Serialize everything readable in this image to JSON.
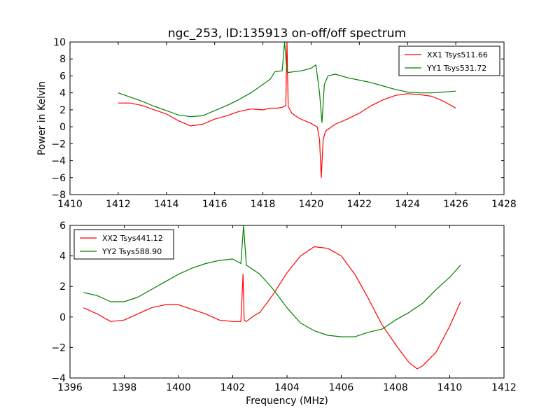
{
  "title": "ngc_253, ID:135913 on-off/off spectrum",
  "chart_data": [
    {
      "type": "line",
      "title": "ngc_253, ID:135913 on-off/off spectrum",
      "xlabel": "",
      "ylabel": "Power in Kelvin",
      "xlim": [
        1410,
        1428
      ],
      "ylim": [
        -8,
        10
      ],
      "xticks": [
        1410,
        1412,
        1414,
        1416,
        1418,
        1420,
        1422,
        1424,
        1426,
        1428
      ],
      "yticks": [
        -8,
        -6,
        -4,
        -2,
        0,
        2,
        4,
        6,
        8,
        10
      ],
      "legend_position": "top-right",
      "series": [
        {
          "name": "XX1 Tsys511.66",
          "color": "#ff0000",
          "x": [
            1412.0,
            1412.5,
            1413.0,
            1413.5,
            1414.0,
            1414.5,
            1415.0,
            1415.5,
            1416.0,
            1416.5,
            1417.0,
            1417.5,
            1418.0,
            1418.3,
            1418.6,
            1418.8,
            1418.95,
            1419.0,
            1419.05,
            1419.2,
            1419.5,
            1420.0,
            1420.25,
            1420.35,
            1420.42,
            1420.5,
            1420.6,
            1421.0,
            1421.5,
            1422.0,
            1422.5,
            1423.0,
            1423.5,
            1424.0,
            1424.5,
            1425.0,
            1425.5,
            1426.0
          ],
          "y": [
            2.8,
            2.8,
            2.5,
            2.0,
            1.5,
            0.7,
            0.1,
            0.3,
            0.9,
            1.3,
            1.8,
            2.1,
            2.0,
            2.2,
            2.2,
            2.3,
            2.5,
            10.0,
            2.4,
            1.6,
            1.0,
            0.4,
            0.0,
            -1.5,
            -6.0,
            -1.5,
            -0.5,
            0.3,
            0.9,
            1.6,
            2.5,
            3.2,
            3.7,
            3.9,
            3.8,
            3.6,
            3.0,
            2.2
          ]
        },
        {
          "name": "YY1 Tsys531.72",
          "color": "#008000",
          "x": [
            1412.0,
            1412.5,
            1413.0,
            1413.5,
            1414.0,
            1414.5,
            1415.0,
            1415.5,
            1416.0,
            1416.5,
            1417.0,
            1417.5,
            1418.0,
            1418.3,
            1418.5,
            1418.8,
            1418.9,
            1419.0,
            1419.05,
            1419.3,
            1419.6,
            1420.0,
            1420.2,
            1420.35,
            1420.45,
            1420.55,
            1420.7,
            1421.0,
            1421.5,
            1422.0,
            1422.5,
            1423.0,
            1423.5,
            1424.0,
            1424.5,
            1425.0,
            1425.5,
            1426.0
          ],
          "y": [
            4.0,
            3.5,
            3.0,
            2.4,
            1.9,
            1.4,
            1.2,
            1.3,
            1.9,
            2.5,
            3.2,
            4.0,
            5.0,
            5.6,
            6.5,
            6.6,
            10.0,
            6.5,
            6.4,
            6.5,
            6.6,
            6.9,
            7.3,
            4.0,
            0.5,
            5.0,
            6.0,
            6.2,
            5.8,
            5.5,
            5.2,
            4.8,
            4.4,
            4.1,
            4.0,
            4.0,
            4.1,
            4.2
          ]
        }
      ]
    },
    {
      "type": "line",
      "title": "",
      "xlabel": "Frequency (MHz)",
      "ylabel": "",
      "xlim": [
        1396,
        1412
      ],
      "ylim": [
        -4,
        6
      ],
      "xticks": [
        1396,
        1398,
        1400,
        1402,
        1404,
        1406,
        1408,
        1410,
        1412
      ],
      "yticks": [
        -4,
        -2,
        0,
        2,
        4,
        6
      ],
      "legend_position": "top-left",
      "series": [
        {
          "name": "XX2 Tsys441.12",
          "color": "#ff0000",
          "x": [
            1396.5,
            1397.0,
            1397.5,
            1398.0,
            1398.5,
            1399.0,
            1399.5,
            1400.0,
            1400.5,
            1401.0,
            1401.5,
            1402.0,
            1402.3,
            1402.38,
            1402.42,
            1402.5,
            1402.8,
            1403.0,
            1403.5,
            1404.0,
            1404.5,
            1405.0,
            1405.5,
            1406.0,
            1406.5,
            1407.0,
            1407.5,
            1408.0,
            1408.5,
            1408.8,
            1409.0,
            1409.5,
            1410.0,
            1410.4
          ],
          "y": [
            0.6,
            0.2,
            -0.3,
            -0.2,
            0.2,
            0.6,
            0.8,
            0.8,
            0.5,
            0.2,
            -0.2,
            -0.3,
            -0.3,
            2.8,
            -0.2,
            -0.3,
            0.1,
            0.3,
            1.5,
            2.9,
            4.0,
            4.6,
            4.5,
            4.0,
            2.8,
            1.2,
            -0.5,
            -1.8,
            -3.0,
            -3.4,
            -3.2,
            -2.3,
            -0.6,
            1.0
          ]
        },
        {
          "name": "YY2 Tsys588.90",
          "color": "#008000",
          "x": [
            1396.5,
            1397.0,
            1397.5,
            1398.0,
            1398.5,
            1399.0,
            1399.5,
            1400.0,
            1400.5,
            1401.0,
            1401.5,
            1402.0,
            1402.3,
            1402.4,
            1402.5,
            1403.0,
            1403.5,
            1404.0,
            1404.5,
            1405.0,
            1405.5,
            1406.0,
            1406.5,
            1407.0,
            1407.5,
            1408.0,
            1408.5,
            1409.0,
            1409.5,
            1410.0,
            1410.4
          ],
          "y": [
            1.6,
            1.4,
            1.0,
            1.0,
            1.3,
            1.8,
            2.3,
            2.8,
            3.2,
            3.5,
            3.7,
            3.8,
            3.5,
            6.0,
            3.4,
            2.8,
            1.8,
            0.6,
            -0.4,
            -0.9,
            -1.2,
            -1.3,
            -1.3,
            -1.0,
            -0.8,
            -0.2,
            0.3,
            0.9,
            1.8,
            2.6,
            3.4
          ]
        }
      ]
    }
  ]
}
